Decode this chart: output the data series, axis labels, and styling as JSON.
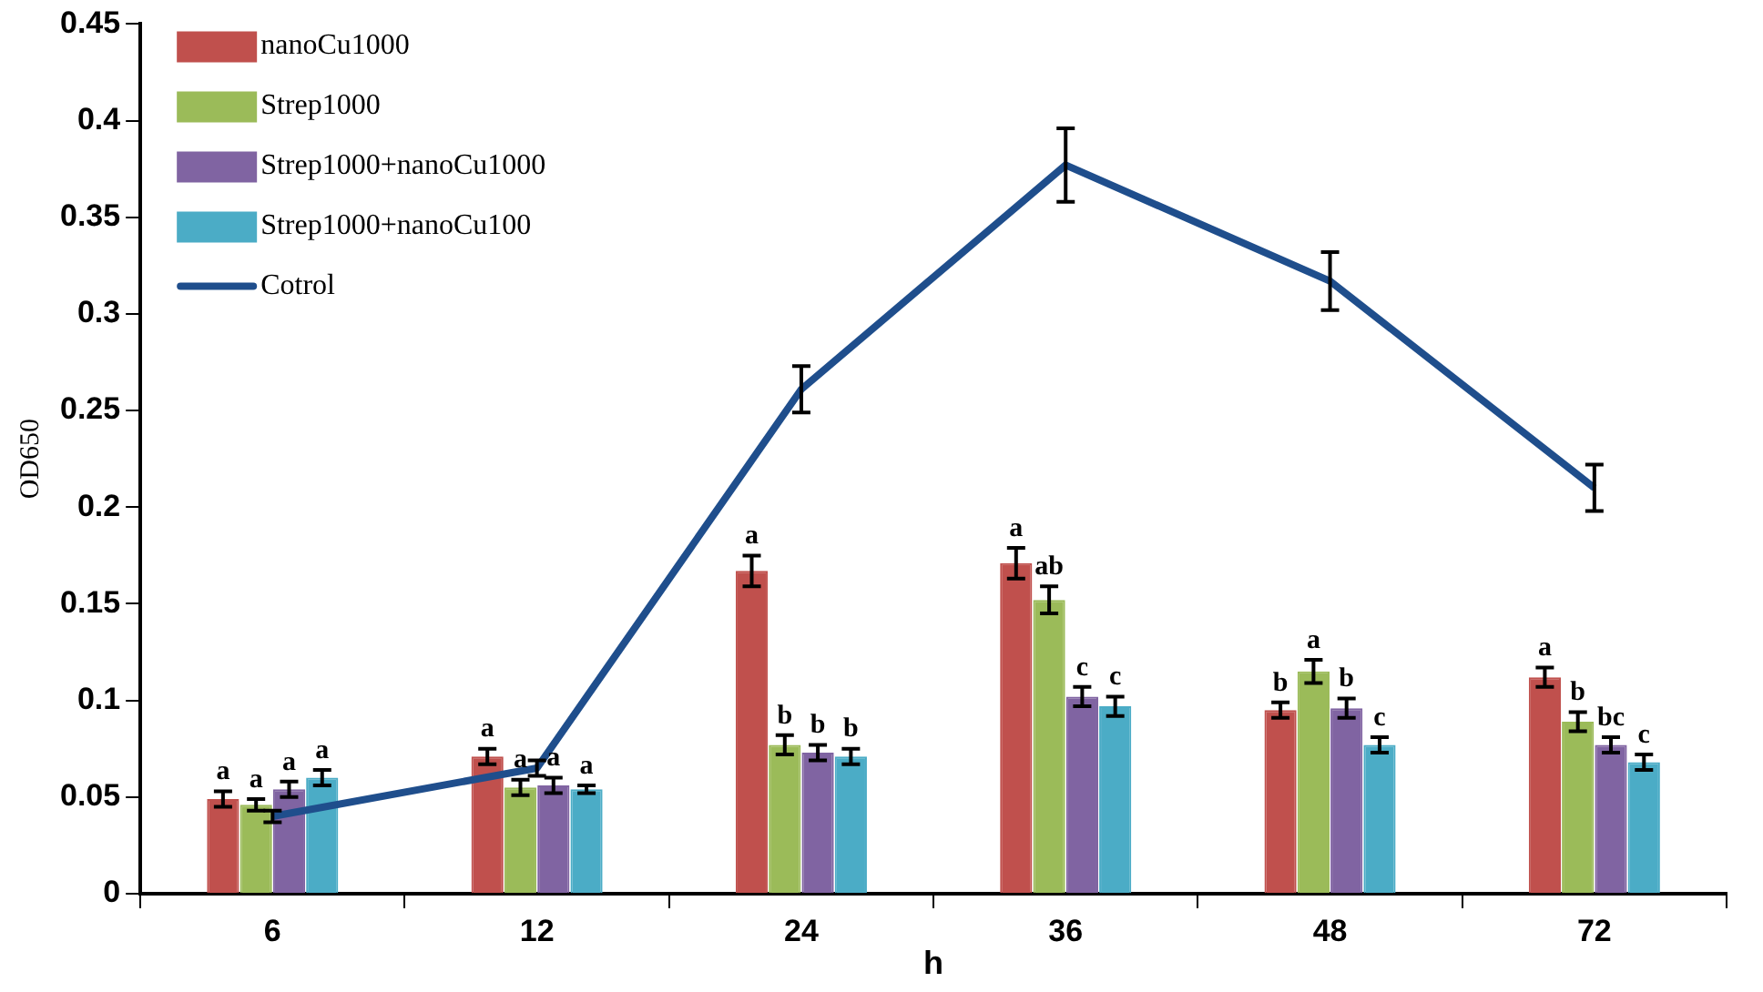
{
  "chart_data": {
    "type": "bar",
    "xlabel": "h",
    "ylabel": "OD650",
    "categories": [
      "6",
      "12",
      "24",
      "36",
      "48",
      "72"
    ],
    "ylim": [
      0,
      0.45
    ],
    "yticks": [
      0,
      0.05,
      0.1,
      0.15,
      0.2,
      0.25,
      0.3,
      0.35,
      0.4,
      0.45
    ],
    "grid": false,
    "legend": "top left",
    "series": [
      {
        "name": "nanoCu1000",
        "color": "#c0504d",
        "values": [
          0.049,
          0.071,
          0.167,
          0.171,
          0.095,
          0.112
        ],
        "errors": [
          0.004,
          0.004,
          0.008,
          0.008,
          0.004,
          0.005
        ],
        "value_labels": [
          "a",
          "a",
          "a",
          "a",
          "b",
          "a"
        ]
      },
      {
        "name": "Strep1000",
        "color": "#9bbb59",
        "values": [
          0.046,
          0.055,
          0.077,
          0.152,
          0.115,
          0.089
        ],
        "errors": [
          0.003,
          0.004,
          0.005,
          0.007,
          0.006,
          0.005
        ],
        "value_labels": [
          "a",
          "a",
          "b",
          "ab",
          "a",
          "b"
        ]
      },
      {
        "name": "Strep1000+nanoCu1000",
        "color": "#8064a2",
        "values": [
          0.054,
          0.056,
          0.073,
          0.102,
          0.096,
          0.077
        ],
        "errors": [
          0.004,
          0.004,
          0.004,
          0.005,
          0.005,
          0.004
        ],
        "value_labels": [
          "a",
          "a",
          "b",
          "c",
          "b",
          "bc"
        ]
      },
      {
        "name": "Strep1000+nanoCu100",
        "color": "#4bacc6",
        "values": [
          0.06,
          0.054,
          0.071,
          0.097,
          0.077,
          0.068
        ],
        "errors": [
          0.004,
          0.002,
          0.004,
          0.005,
          0.004,
          0.004
        ],
        "value_labels": [
          "a",
          "a",
          "b",
          "c",
          "c",
          "c"
        ]
      },
      {
        "name": "Cotrol",
        "type": "line",
        "color": "#1f4e8c",
        "marker": "none",
        "line_style": "solid",
        "values": [
          0.04,
          0.065,
          0.261,
          0.377,
          0.317,
          0.21
        ],
        "errors": [
          0.003,
          0.004,
          0.012,
          0.019,
          0.015,
          0.012
        ]
      }
    ]
  }
}
